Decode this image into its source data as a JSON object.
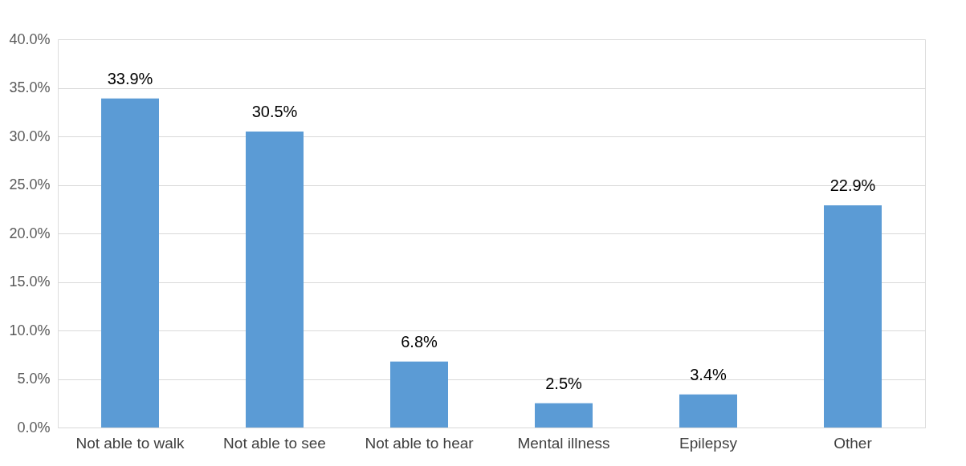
{
  "chart_data": {
    "type": "bar",
    "categories": [
      "Not able to walk",
      "Not able to see",
      "Not able to hear",
      "Mental illness",
      "Epilepsy",
      "Other"
    ],
    "values": [
      33.9,
      30.5,
      6.8,
      2.5,
      3.4,
      22.9
    ],
    "value_labels": [
      "33.9%",
      "30.5%",
      "6.8%",
      "2.5%",
      "3.4%",
      "22.9%"
    ],
    "color": "#5b9bd5",
    "ylim": [
      0,
      40
    ],
    "yticks": [
      {
        "value": 0,
        "label": "0.0%"
      },
      {
        "value": 5,
        "label": "5.0%"
      },
      {
        "value": 10,
        "label": "10.0%"
      },
      {
        "value": 15,
        "label": "15.0%"
      },
      {
        "value": 20,
        "label": "20.0%"
      },
      {
        "value": 25,
        "label": "25.0%"
      },
      {
        "value": 30,
        "label": "30.0%"
      },
      {
        "value": 35,
        "label": "35.0%"
      },
      {
        "value": 40,
        "label": "40.0%"
      }
    ],
    "grid": "y"
  }
}
